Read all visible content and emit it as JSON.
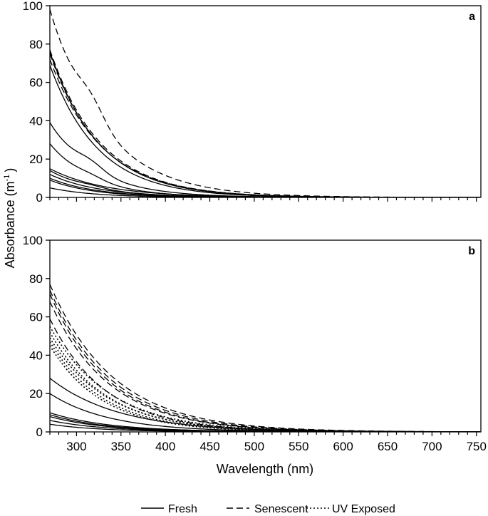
{
  "chart_data": {
    "type": "line",
    "ylabel": "Absorbance (m",
    "ylabel_sup": "-1",
    "ylabel_close": ")",
    "xlabel": "Wavelength (nm)",
    "xlim": [
      270,
      755
    ],
    "x_ticks": [
      300,
      350,
      400,
      450,
      500,
      550,
      600,
      650,
      700,
      750
    ],
    "ylim": [
      0,
      100
    ],
    "y_ticks": [
      0,
      20,
      40,
      60,
      80,
      100
    ],
    "legend": {
      "placement": "bottom-center",
      "items": [
        {
          "label": "Fresh",
          "style": "solid"
        },
        {
          "label": "Senescent",
          "style": "dashed"
        },
        {
          "label": "UV Exposed",
          "style": "dotted"
        }
      ]
    },
    "decay_model": "absorbance at wavelength x: a270 * exp(-S * (x - 270)); shoulder adds a bump near 320 nm",
    "panels": [
      {
        "label": "a",
        "series": [
          {
            "group": "Senescent",
            "a270": 98,
            "S": 0.0165,
            "shoulder": 0.2
          },
          {
            "group": "Senescent",
            "a270": 77,
            "S": 0.0175,
            "shoulder": 0
          },
          {
            "group": "Senescent",
            "a270": 75,
            "S": 0.0178,
            "shoulder": 0
          },
          {
            "group": "Senescent",
            "a270": 72,
            "S": 0.0172,
            "shoulder": 0
          },
          {
            "group": "Fresh",
            "a270": 76,
            "S": 0.018,
            "shoulder": 0
          },
          {
            "group": "Fresh",
            "a270": 69,
            "S": 0.0185,
            "shoulder": 0
          },
          {
            "group": "Fresh",
            "a270": 39,
            "S": 0.0195,
            "shoulder": 0.25
          },
          {
            "group": "Fresh",
            "a270": 28,
            "S": 0.0205,
            "shoulder": 0.15
          },
          {
            "group": "Fresh",
            "a270": 15,
            "S": 0.016,
            "shoulder": 0
          },
          {
            "group": "Fresh",
            "a270": 14,
            "S": 0.019,
            "shoulder": 0.15
          },
          {
            "group": "Fresh",
            "a270": 12,
            "S": 0.018,
            "shoulder": 0
          },
          {
            "group": "Fresh",
            "a270": 10,
            "S": 0.019,
            "shoulder": 0
          },
          {
            "group": "Fresh",
            "a270": 9,
            "S": 0.02,
            "shoulder": 0
          },
          {
            "group": "Fresh",
            "a270": 5,
            "S": 0.02,
            "shoulder": 0
          }
        ]
      },
      {
        "label": "b",
        "series": [
          {
            "group": "Senescent",
            "a270": 77,
            "S": 0.014,
            "shoulder": 0
          },
          {
            "group": "Senescent",
            "a270": 74,
            "S": 0.0145,
            "shoulder": 0
          },
          {
            "group": "Senescent",
            "a270": 72,
            "S": 0.015,
            "shoulder": 0
          },
          {
            "group": "Senescent",
            "a270": 68,
            "S": 0.015,
            "shoulder": 0
          },
          {
            "group": "Senescent",
            "a270": 59,
            "S": 0.016,
            "shoulder": 0
          },
          {
            "group": "UV Exposed",
            "a270": 55,
            "S": 0.015,
            "shoulder": 0
          },
          {
            "group": "UV Exposed",
            "a270": 52,
            "S": 0.016,
            "shoulder": 0
          },
          {
            "group": "UV Exposed",
            "a270": 49,
            "S": 0.0155,
            "shoulder": 0
          },
          {
            "group": "UV Exposed",
            "a270": 47,
            "S": 0.0165,
            "shoulder": 0
          },
          {
            "group": "UV Exposed",
            "a270": 45,
            "S": 0.017,
            "shoulder": 0
          },
          {
            "group": "Fresh",
            "a270": 28,
            "S": 0.013,
            "shoulder": 0
          },
          {
            "group": "Fresh",
            "a270": 20,
            "S": 0.015,
            "shoulder": 0
          },
          {
            "group": "Fresh",
            "a270": 10,
            "S": 0.015,
            "shoulder": 0
          },
          {
            "group": "Fresh",
            "a270": 9,
            "S": 0.016,
            "shoulder": 0
          },
          {
            "group": "Fresh",
            "a270": 8,
            "S": 0.016,
            "shoulder": 0
          },
          {
            "group": "Fresh",
            "a270": 6,
            "S": 0.016,
            "shoulder": 0
          },
          {
            "group": "Fresh",
            "a270": 4,
            "S": 0.017,
            "shoulder": 0
          }
        ]
      }
    ]
  }
}
